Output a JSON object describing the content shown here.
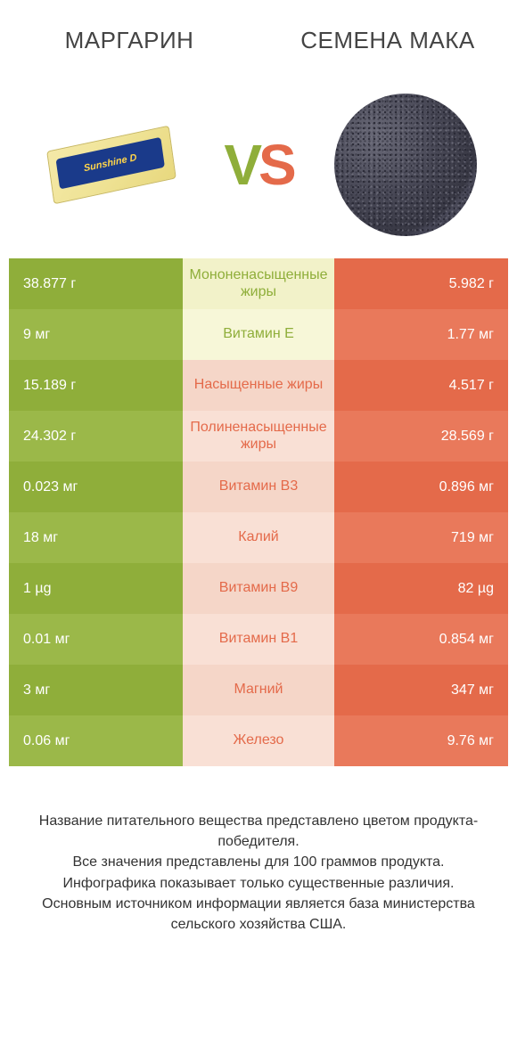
{
  "header": {
    "left_title": "МАРГАРИН",
    "right_title": "СЕМЕНА МАКА",
    "vs_v": "V",
    "vs_s": "S",
    "margarine_brand": "Sunshine D"
  },
  "colors": {
    "green": "#8fae3a",
    "green_alt": "#9bb849",
    "orange": "#e46a4a",
    "orange_alt": "#e9795b",
    "mid_green_bg": "#f2f2c9",
    "mid_green_bg_alt": "#f7f7d8",
    "mid_orange_bg": "#f5d6c8",
    "mid_orange_bg_alt": "#f9e0d5",
    "text_dark": "#333333"
  },
  "table": {
    "rows": [
      {
        "left": "38.877 г",
        "label": "Мононенасыщенные жиры",
        "right": "5.982 г",
        "winner": "left"
      },
      {
        "left": "9 мг",
        "label": "Витамин E",
        "right": "1.77 мг",
        "winner": "left"
      },
      {
        "left": "15.189 г",
        "label": "Насыщенные жиры",
        "right": "4.517 г",
        "winner": "right"
      },
      {
        "left": "24.302 г",
        "label": "Полиненасыщенные жиры",
        "right": "28.569 г",
        "winner": "right"
      },
      {
        "left": "0.023 мг",
        "label": "Витамин B3",
        "right": "0.896 мг",
        "winner": "right"
      },
      {
        "left": "18 мг",
        "label": "Калий",
        "right": "719 мг",
        "winner": "right"
      },
      {
        "left": "1 µg",
        "label": "Витамин B9",
        "right": "82 µg",
        "winner": "right"
      },
      {
        "left": "0.01 мг",
        "label": "Витамин B1",
        "right": "0.854 мг",
        "winner": "right"
      },
      {
        "left": "3 мг",
        "label": "Магний",
        "right": "347 мг",
        "winner": "right"
      },
      {
        "left": "0.06 мг",
        "label": "Железо",
        "right": "9.76 мг",
        "winner": "right"
      }
    ]
  },
  "footer": {
    "line1": "Название питательного вещества представлено цветом продукта-победителя.",
    "line2": "Все значения представлены для 100 граммов продукта.",
    "line3": "Инфографика показывает только существенные различия.",
    "line4": "Основным источником информации является база министерства сельского хозяйства США."
  }
}
